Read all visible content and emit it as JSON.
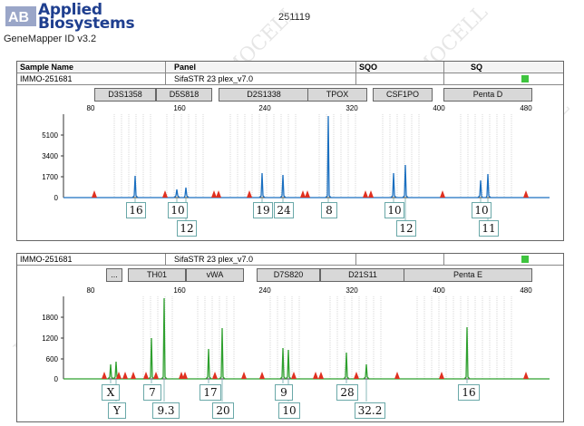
{
  "header": {
    "brand_line1": "Applied",
    "brand_line2": "Biosystems",
    "software": "GeneMapper ID v3.2",
    "run_id": "251119"
  },
  "table_header": {
    "col_sample": "Sample Name",
    "col_panel": "Panel",
    "col_sqo": "SQO",
    "col_sq": "SQ"
  },
  "watermark": "IMMOCELL",
  "colors": {
    "blue_trace": "#1a6fc0",
    "green_trace": "#2ea02e",
    "peak_marker": "#e03020",
    "status_ok": "#3ec43e"
  },
  "panel1": {
    "sample": "IMMO-251681",
    "panel": "SifaSTR 23 plex_v7.0",
    "markers": [
      "D3S1358",
      "D5S818",
      "D2S1338",
      "TPOX",
      "CSF1PO",
      "Penta D"
    ],
    "x_ticks": [
      "80",
      "160",
      "240",
      "320",
      "400",
      "480"
    ],
    "y_ticks": [
      "5100",
      "3400",
      "1700",
      "0"
    ],
    "alleles_top": [
      "16",
      "10",
      "19",
      "24",
      "8",
      "10",
      "10"
    ],
    "alleles_bottom": [
      "12",
      "12",
      "11"
    ]
  },
  "panel2": {
    "sample": "IMMO-251681",
    "panel": "SifaSTR 23 plex_v7.0",
    "markers": [
      "...",
      "TH01",
      "vWA",
      "D7S820",
      "D21S11",
      "Penta E"
    ],
    "x_ticks": [
      "80",
      "160",
      "240",
      "320",
      "400",
      "480"
    ],
    "y_ticks": [
      "1800",
      "1200",
      "600",
      "0"
    ],
    "alleles_top": [
      "X",
      "7",
      "17",
      "9",
      "28",
      "16"
    ],
    "alleles_bottom": [
      "Y",
      "9.3",
      "20",
      "10",
      "32.2"
    ]
  }
}
